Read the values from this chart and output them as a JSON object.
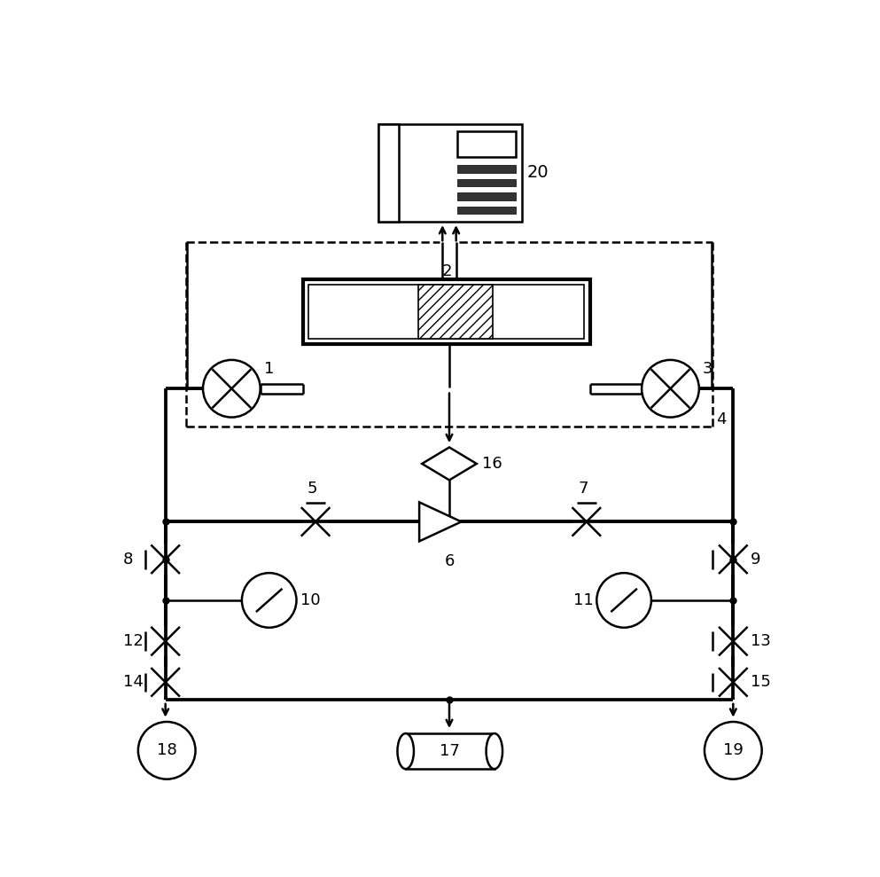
{
  "bg_color": "#ffffff",
  "lc": "#000000",
  "lw": 1.8,
  "figw": 9.93,
  "figh": 9.89,
  "dpi": 100
}
